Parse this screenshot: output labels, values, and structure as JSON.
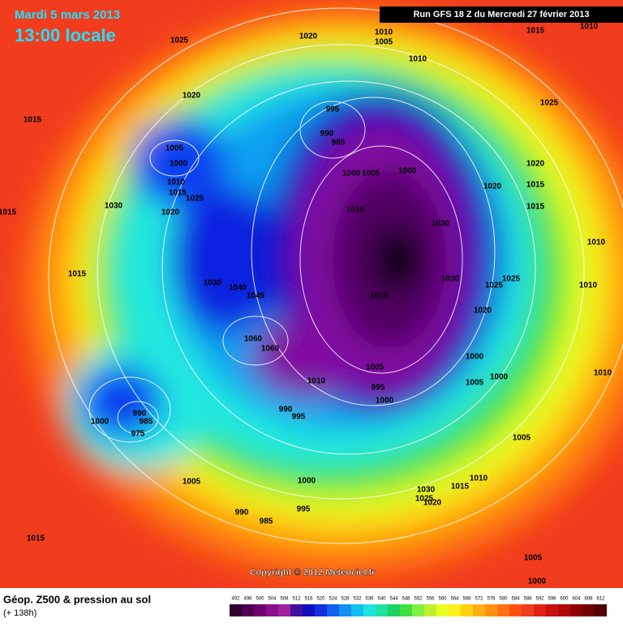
{
  "header": {
    "date": "Mardi 5 mars 2013",
    "time": "13:00 locale",
    "run": "Run GFS 18 Z du Mercredi 27 février 2013"
  },
  "map": {
    "copyright": "Copyright © 2012 Meteociel.fr",
    "isobar_labels": [
      "1025",
      "1020",
      "1010",
      "1005",
      "1015",
      "1010",
      "1010",
      "1020",
      "1025",
      "1015",
      "995",
      "990",
      "985",
      "1005",
      "1000",
      "1010",
      "1015",
      "1025",
      "1030",
      "1020",
      "1000",
      "1005",
      "1000",
      "1020",
      "1020",
      "1015",
      "1015",
      "1015",
      "1010",
      "1030",
      "1010",
      "1015",
      "1030",
      "1040",
      "1045",
      "1015",
      "1030",
      "1025",
      "1025",
      "1010",
      "1020",
      "1060",
      "1060",
      "1000",
      "1005",
      "1000",
      "1010",
      "1010",
      "1005",
      "995",
      "990",
      "995",
      "1000",
      "990",
      "985",
      "975",
      "1000",
      "1005",
      "1010",
      "1015",
      "1030",
      "1025",
      "1020",
      "1005",
      "1000",
      "995",
      "985",
      "990",
      "1015",
      "1005",
      "1000"
    ]
  },
  "footer": {
    "title": "Géop. Z500 & pression au sol",
    "subtitle": "(+ 138h)",
    "scale": [
      492,
      496,
      500,
      504,
      508,
      512,
      516,
      520,
      524,
      528,
      532,
      536,
      540,
      544,
      548,
      552,
      556,
      560,
      564,
      568,
      572,
      576,
      580,
      584,
      588,
      592,
      596,
      600,
      604,
      608,
      612
    ]
  }
}
